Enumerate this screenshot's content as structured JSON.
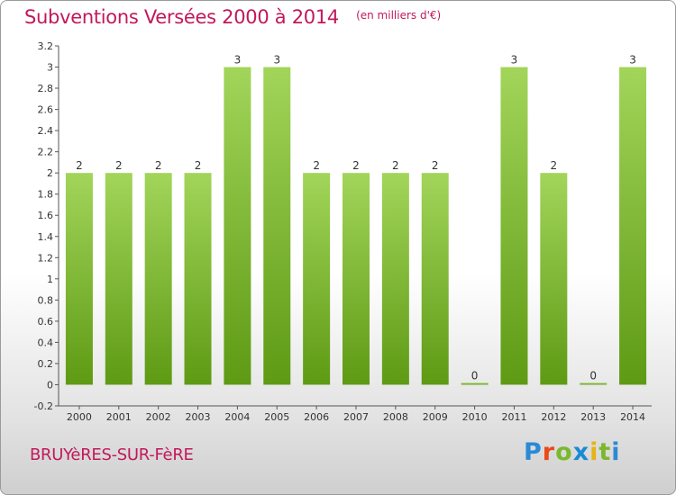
{
  "title": "Subventions Versées 2000 à 2014",
  "subtitle": "(en milliers d'€)",
  "commune": "BRUYèRES-SUR-FèRE",
  "logo": {
    "letters": [
      "P",
      "r",
      "o",
      "x",
      "i",
      "t",
      "i"
    ],
    "colors": [
      "#2a8ad6",
      "#e84a1a",
      "#7ab82e",
      "#1a8ad6",
      "#e4b41a",
      "#7ab82e",
      "#2a8ad6"
    ]
  },
  "colors": {
    "bar_light": "#a2d55a",
    "bar_dark": "#5e9a14",
    "title": "#c2185b"
  },
  "chart_data": {
    "type": "bar",
    "title": "Subventions Versées 2000 à 2014",
    "subtitle": "(en milliers d'€)",
    "categories": [
      "2000",
      "2001",
      "2002",
      "2003",
      "2004",
      "2005",
      "2006",
      "2007",
      "2008",
      "2009",
      "2010",
      "2011",
      "2012",
      "2013",
      "2014"
    ],
    "values": [
      2,
      2,
      2,
      2,
      3,
      3,
      2,
      2,
      2,
      2,
      0,
      3,
      2,
      0,
      3
    ],
    "data_labels": [
      "2",
      "2",
      "2",
      "2",
      "3",
      "3",
      "2",
      "2",
      "2",
      "2",
      "0",
      "3",
      "2",
      "0",
      "3"
    ],
    "ylim": [
      -0.2,
      3.2
    ],
    "yticks": [
      "-0.2",
      "0",
      "0.2",
      "0.4",
      "0.6",
      "0.8",
      "1",
      "1.2",
      "1.4",
      "1.6",
      "1.8",
      "2",
      "2.2",
      "2.4",
      "2.6",
      "2.8",
      "3",
      "3.2"
    ],
    "grid": false,
    "legend": "none"
  }
}
